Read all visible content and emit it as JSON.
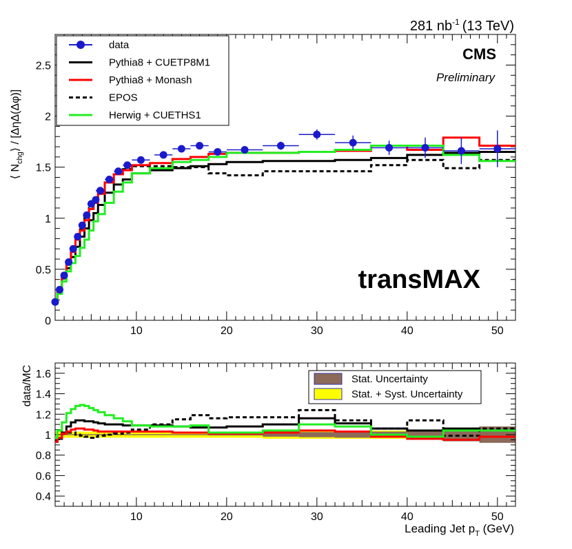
{
  "top_right_label": {
    "lumi": "281 nb",
    "exp": "-1",
    "energy": "(13 TeV)"
  },
  "cms_label": "CMS",
  "prelim_label": "Preliminary",
  "region_label": "transMAX",
  "colors": {
    "data": "#1a1acc",
    "cuetp8m1": "#000000",
    "monash": "#ff0000",
    "epos": "#000000",
    "herwig": "#22ee22",
    "stat_band": "#8c6a5a",
    "syst_band": "#ffff00"
  },
  "chart_data": [
    {
      "type": "line",
      "panel": "top",
      "xlabel": "Leading Jet p_T (GeV)",
      "ylabel": "⟨ N_chg ⟩ / [ΔηΔ(Δφ)]",
      "xlim": [
        1,
        52
      ],
      "ylim": [
        0,
        2.8
      ],
      "xticks": [
        10,
        20,
        30,
        40,
        50
      ],
      "yticks": [
        0,
        0.5,
        1,
        1.5,
        2,
        2.5
      ],
      "legend": [
        {
          "key": "data",
          "label": "data",
          "style": "marker"
        },
        {
          "key": "cuetp8m1",
          "label": "Pythia8 + CUETP8M1",
          "style": "solid"
        },
        {
          "key": "monash",
          "label": "Pythia8 + Monash",
          "style": "solid"
        },
        {
          "key": "epos",
          "label": "EPOS",
          "style": "dashed"
        },
        {
          "key": "herwig",
          "label": "Herwig + CUETHS1",
          "style": "solid"
        }
      ],
      "data": {
        "x": [
          1,
          1.5,
          2,
          2.5,
          3,
          3.5,
          4,
          4.5,
          5,
          5.5,
          6,
          7,
          8,
          9,
          10.5,
          13,
          15,
          17,
          19,
          22,
          26,
          30,
          34,
          38,
          42,
          46,
          50
        ],
        "xerr": [
          0.25,
          0.25,
          0.25,
          0.25,
          0.25,
          0.25,
          0.25,
          0.25,
          0.25,
          0.25,
          0.5,
          0.5,
          0.5,
          0.5,
          1,
          1,
          1,
          1,
          1,
          2,
          2,
          2,
          2,
          2,
          2,
          2,
          2
        ],
        "y": [
          0.18,
          0.3,
          0.44,
          0.57,
          0.7,
          0.82,
          0.93,
          1.03,
          1.14,
          1.18,
          1.27,
          1.38,
          1.46,
          1.52,
          1.57,
          1.62,
          1.68,
          1.71,
          1.65,
          1.67,
          1.71,
          1.82,
          1.74,
          1.69,
          1.69,
          1.66,
          1.68
        ],
        "yerr": [
          0.01,
          0.01,
          0.01,
          0.01,
          0.01,
          0.01,
          0.01,
          0.01,
          0.01,
          0.01,
          0.01,
          0.01,
          0.01,
          0.01,
          0.01,
          0.01,
          0.01,
          0.01,
          0.02,
          0.02,
          0.04,
          0.05,
          0.07,
          0.07,
          0.1,
          0.13,
          0.18
        ]
      },
      "bin_edges": [
        0.75,
        1.25,
        1.75,
        2.25,
        2.75,
        3.25,
        3.75,
        4.25,
        4.75,
        5.25,
        5.75,
        6.5,
        7.5,
        8.5,
        9.5,
        11.5,
        14,
        16,
        18,
        20,
        24,
        28,
        32,
        36,
        40,
        44,
        48,
        52
      ],
      "series": [
        {
          "key": "cuetp8m1",
          "name": "Pythia8 + CUETP8M1",
          "values": [
            0.18,
            0.28,
            0.41,
            0.51,
            0.62,
            0.72,
            0.82,
            0.9,
            0.98,
            1.05,
            1.13,
            1.25,
            1.33,
            1.38,
            1.44,
            1.47,
            1.49,
            1.51,
            1.53,
            1.55,
            1.56,
            1.56,
            1.57,
            1.59,
            1.62,
            1.64,
            1.65
          ]
        },
        {
          "key": "monash",
          "name": "Pythia8 + Monash",
          "values": [
            0.18,
            0.3,
            0.43,
            0.56,
            0.67,
            0.79,
            0.88,
            0.98,
            1.09,
            1.15,
            1.24,
            1.35,
            1.43,
            1.47,
            1.52,
            1.54,
            1.58,
            1.6,
            1.63,
            1.64,
            1.64,
            1.65,
            1.66,
            1.71,
            1.67,
            1.79,
            1.71,
            1.72
          ]
        },
        {
          "key": "epos",
          "name": "EPOS",
          "values": [
            0.18,
            0.31,
            0.43,
            0.56,
            0.68,
            0.8,
            0.89,
            1.0,
            1.1,
            1.16,
            1.24,
            1.35,
            1.43,
            1.48,
            1.51,
            1.51,
            1.5,
            1.5,
            1.44,
            1.42,
            1.46,
            1.46,
            1.46,
            1.52,
            1.57,
            1.49,
            1.57,
            1.58
          ]
        },
        {
          "key": "herwig",
          "name": "Herwig + CUETHS1",
          "values": [
            0.16,
            0.26,
            0.38,
            0.48,
            0.56,
            0.63,
            0.71,
            0.79,
            0.88,
            0.97,
            1.04,
            1.15,
            1.26,
            1.35,
            1.44,
            1.49,
            1.55,
            1.57,
            1.6,
            1.64,
            1.64,
            1.65,
            1.67,
            1.71,
            1.71,
            1.62,
            1.56,
            1.63
          ]
        }
      ]
    },
    {
      "type": "line",
      "panel": "ratio",
      "ylabel": "data/MC",
      "xlabel": "Leading Jet p_T (GeV)",
      "xlim": [
        1,
        52
      ],
      "ylim": [
        0.3,
        1.7
      ],
      "xticks": [
        10,
        20,
        30,
        40,
        50
      ],
      "yticks": [
        0.4,
        0.6,
        0.8,
        1,
        1.2,
        1.4,
        1.6
      ],
      "legend": [
        {
          "key": "stat_band",
          "label": "Stat. Uncertainty"
        },
        {
          "key": "syst_band",
          "label": "Stat. + Syst. Uncertainty"
        }
      ],
      "bin_edges": [
        0.75,
        1.25,
        1.75,
        2.25,
        2.75,
        3.25,
        3.75,
        4.25,
        4.75,
        5.25,
        5.75,
        6.5,
        7.5,
        8.5,
        9.5,
        11.5,
        14,
        16,
        18,
        20,
        24,
        28,
        32,
        36,
        40,
        44,
        48,
        52
      ],
      "stat_halfwidth": [
        0.005,
        0.005,
        0.005,
        0.005,
        0.005,
        0.005,
        0.005,
        0.005,
        0.005,
        0.005,
        0.005,
        0.005,
        0.005,
        0.005,
        0.005,
        0.005,
        0.005,
        0.005,
        0.008,
        0.008,
        0.02,
        0.025,
        0.03,
        0.03,
        0.045,
        0.065,
        0.08,
        0.1
      ],
      "syst_halfwidth": [
        0.03,
        0.03,
        0.03,
        0.03,
        0.03,
        0.03,
        0.03,
        0.03,
        0.03,
        0.03,
        0.03,
        0.03,
        0.03,
        0.03,
        0.03,
        0.03,
        0.03,
        0.03,
        0.03,
        0.03,
        0.04,
        0.04,
        0.04,
        0.04,
        0.05,
        0.06,
        0.07,
        0.08
      ],
      "series": [
        {
          "key": "cuetp8m1",
          "name": "Pythia8 + CUETP8M1",
          "values": [
            0.93,
            0.96,
            1.02,
            1.08,
            1.12,
            1.14,
            1.14,
            1.13,
            1.13,
            1.12,
            1.11,
            1.1,
            1.1,
            1.09,
            1.09,
            1.09,
            1.08,
            1.07,
            1.07,
            1.08,
            1.1,
            1.16,
            1.11,
            1.06,
            1.04,
            1.06,
            1.04,
            1.03
          ]
        },
        {
          "key": "monash",
          "name": "Pythia8 + Monash",
          "values": [
            0.93,
            0.97,
            1.01,
            1.03,
            1.05,
            1.06,
            1.06,
            1.05,
            1.05,
            1.04,
            1.03,
            1.03,
            1.03,
            1.03,
            1.03,
            1.03,
            1.02,
            1.02,
            1.01,
            1.01,
            1.02,
            1.04,
            1.03,
            0.98,
            0.96,
            0.95,
            0.98,
            0.98
          ]
        },
        {
          "key": "epos",
          "name": "EPOS",
          "values": [
            0.94,
            0.97,
            1.02,
            1.02,
            1.02,
            1.0,
            0.99,
            0.98,
            0.97,
            0.98,
            0.99,
            1.0,
            1.01,
            1.02,
            1.05,
            1.1,
            1.15,
            1.19,
            1.16,
            1.17,
            1.17,
            1.24,
            1.14,
            1.06,
            1.14,
            0.99,
            1.06,
            1.06
          ]
        },
        {
          "key": "herwig",
          "name": "Herwig + CUETHS1",
          "values": [
            0.97,
            1.04,
            1.12,
            1.21,
            1.25,
            1.28,
            1.29,
            1.28,
            1.26,
            1.24,
            1.22,
            1.19,
            1.16,
            1.13,
            1.09,
            1.08,
            1.08,
            1.09,
            1.02,
            1.02,
            1.04,
            1.1,
            1.08,
            1.0,
            0.98,
            1.04,
            1.04,
            1.04
          ]
        }
      ]
    }
  ]
}
